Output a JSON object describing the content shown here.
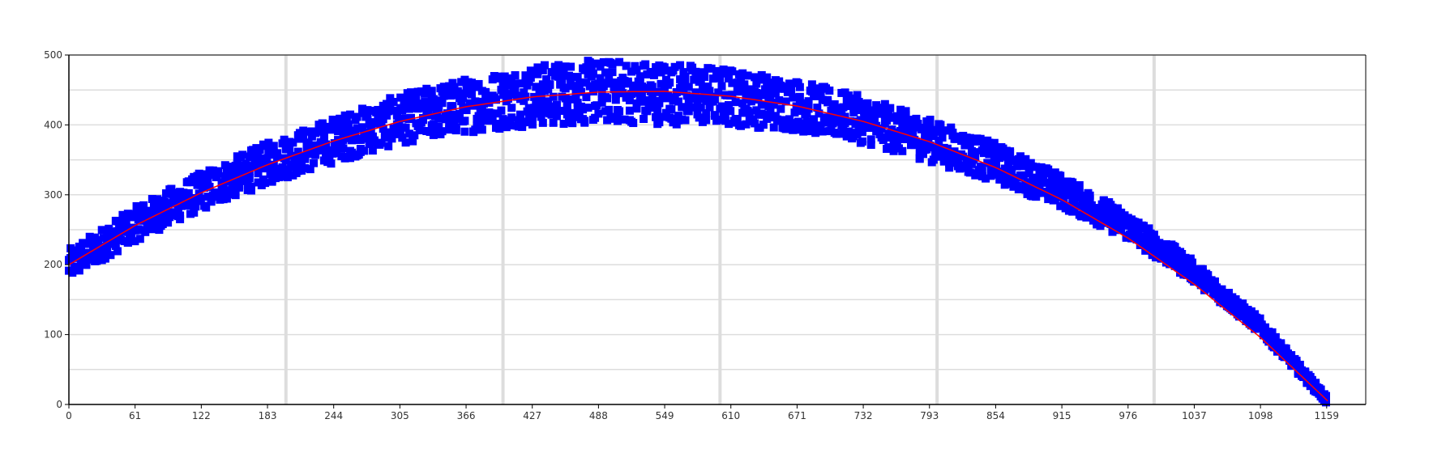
{
  "chart_data": {
    "type": "scatter",
    "x_ticks": [
      0,
      61,
      122,
      183,
      244,
      305,
      366,
      427,
      488,
      549,
      610,
      671,
      732,
      793,
      854,
      915,
      976,
      1037,
      1098,
      1159
    ],
    "y_ticks": [
      0,
      100,
      200,
      300,
      400,
      500
    ],
    "xlim": [
      0,
      1195
    ],
    "ylim": [
      0,
      500
    ],
    "grid": true,
    "title": "",
    "xlabel": "",
    "ylabel": "",
    "series": [
      {
        "type": "scatter",
        "color": "#0000ff",
        "marker": "square",
        "band_center": {
          "x": [
            0,
            61,
            122,
            183,
            244,
            305,
            366,
            427,
            488,
            549,
            610,
            671,
            732,
            793,
            854,
            915,
            976,
            1037,
            1098,
            1160
          ],
          "y": [
            200,
            258,
            305,
            345,
            378,
            408,
            428,
            442,
            448,
            446,
            440,
            428,
            407,
            378,
            346,
            305,
            255,
            190,
            112,
            5
          ]
        },
        "band_halfwidth": {
          "x": [
            0,
            300,
            450,
            550,
            700,
            850,
            1000,
            1160
          ],
          "y": [
            22,
            35,
            45,
            45,
            35,
            28,
            18,
            6
          ]
        }
      },
      {
        "type": "line",
        "color": "#ff0000",
        "x": [
          0,
          61,
          122,
          183,
          244,
          305,
          366,
          427,
          488,
          549,
          610,
          671,
          732,
          793,
          854,
          915,
          976,
          1037,
          1098,
          1160
        ],
        "y": [
          200,
          256,
          303,
          343,
          377,
          405,
          426,
          440,
          447,
          448,
          441,
          427,
          405,
          376,
          339,
          293,
          238,
          172,
          96,
          5
        ]
      }
    ]
  }
}
